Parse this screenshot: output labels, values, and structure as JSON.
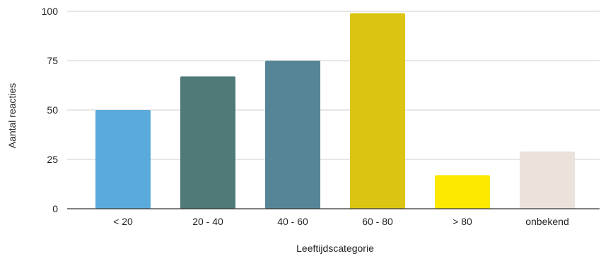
{
  "chart_data": {
    "type": "bar",
    "xlabel": "Leeftijdscategorie",
    "ylabel": "Aantal reacties",
    "ylim": [
      0,
      100
    ],
    "yticks": [
      0,
      25,
      50,
      75,
      100
    ],
    "grid": true,
    "legend": "none",
    "categories": [
      "< 20",
      "20 - 40",
      "40 - 60",
      "60 - 80",
      "> 80",
      "onbekend"
    ],
    "values": [
      50,
      67,
      75,
      99,
      17,
      29
    ],
    "colors": [
      "#5aabdc",
      "#4f7a77",
      "#568598",
      "#dcc412",
      "#fde800",
      "#ebe2dc"
    ]
  },
  "colors": {
    "grid": "#cfcfcf",
    "axis": "#333333",
    "text": "#222222"
  }
}
